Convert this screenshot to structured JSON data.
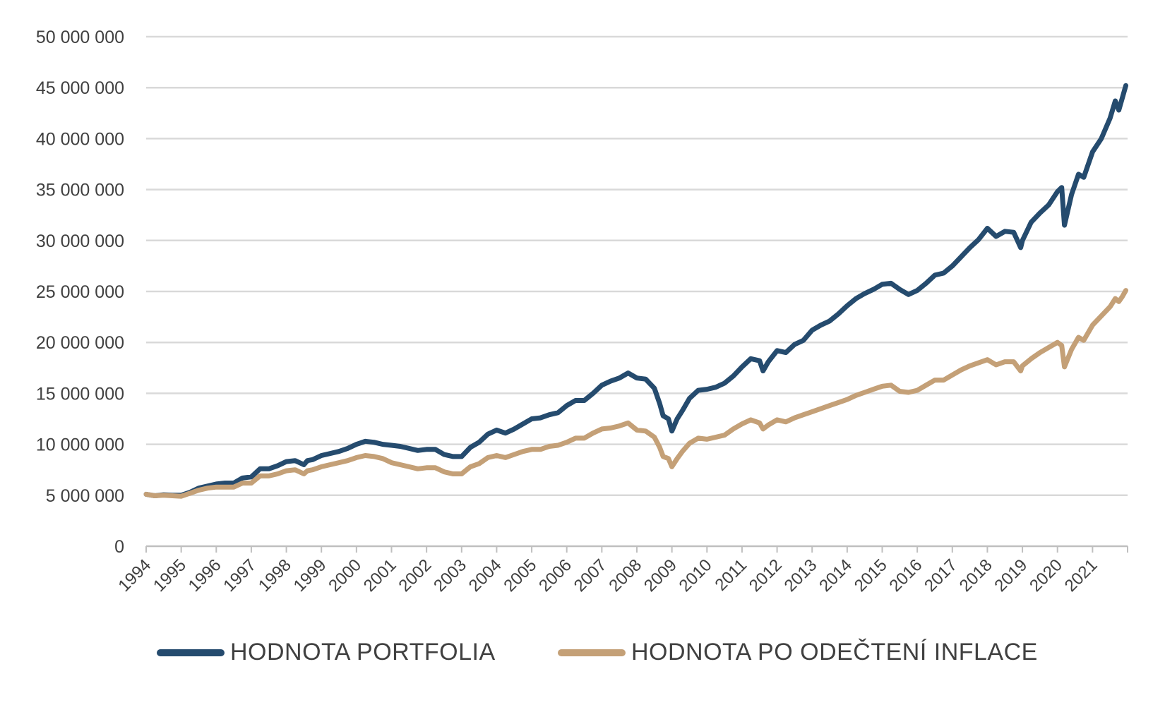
{
  "chart_data": {
    "type": "line",
    "title": "",
    "xlabel": "",
    "ylabel": "",
    "ylim": [
      0,
      50000000
    ],
    "xlim": [
      1994,
      2022
    ],
    "grid": "horizontal",
    "legend_position": "bottom",
    "y_ticks": [
      "0",
      "5 000 000",
      "10 000 000",
      "15 000 000",
      "20 000 000",
      "25 000 000",
      "30 000 000",
      "35 000 000",
      "40 000 000",
      "45 000 000",
      "50 000 000"
    ],
    "y_tick_values": [
      0,
      5000000,
      10000000,
      15000000,
      20000000,
      25000000,
      30000000,
      35000000,
      40000000,
      45000000,
      50000000
    ],
    "x_ticks": [
      "1994",
      "1995",
      "1996",
      "1997",
      "1998",
      "1999",
      "2000",
      "2001",
      "2002",
      "2003",
      "2004",
      "2005",
      "2006",
      "2007",
      "2008",
      "2009",
      "2010",
      "2011",
      "2012",
      "2013",
      "2014",
      "2015",
      "2016",
      "2017",
      "2018",
      "2019",
      "2020",
      "2021"
    ],
    "series": [
      {
        "name": "HODNOTA PORTFOLIA",
        "color": "#254B6E",
        "x": [
          1994.0,
          1994.25,
          1994.5,
          1994.75,
          1995.0,
          1995.25,
          1995.5,
          1995.75,
          1996.0,
          1996.25,
          1996.5,
          1996.75,
          1997.0,
          1997.25,
          1997.5,
          1997.75,
          1998.0,
          1998.25,
          1998.5,
          1998.6,
          1998.75,
          1999.0,
          1999.25,
          1999.5,
          1999.75,
          2000.0,
          2000.25,
          2000.5,
          2000.75,
          2001.0,
          2001.25,
          2001.5,
          2001.75,
          2002.0,
          2002.25,
          2002.5,
          2002.75,
          2003.0,
          2003.25,
          2003.5,
          2003.75,
          2004.0,
          2004.25,
          2004.5,
          2004.75,
          2005.0,
          2005.25,
          2005.5,
          2005.75,
          2006.0,
          2006.25,
          2006.5,
          2006.75,
          2007.0,
          2007.25,
          2007.5,
          2007.75,
          2008.0,
          2008.25,
          2008.5,
          2008.65,
          2008.75,
          2008.9,
          2009.0,
          2009.15,
          2009.3,
          2009.5,
          2009.75,
          2010.0,
          2010.25,
          2010.5,
          2010.75,
          2011.0,
          2011.25,
          2011.5,
          2011.6,
          2011.75,
          2012.0,
          2012.25,
          2012.5,
          2012.75,
          2013.0,
          2013.25,
          2013.5,
          2013.75,
          2014.0,
          2014.25,
          2014.5,
          2014.75,
          2015.0,
          2015.25,
          2015.5,
          2015.75,
          2016.0,
          2016.25,
          2016.5,
          2016.75,
          2017.0,
          2017.25,
          2017.5,
          2017.75,
          2018.0,
          2018.25,
          2018.5,
          2018.75,
          2018.95,
          2019.0,
          2019.25,
          2019.5,
          2019.75,
          2020.0,
          2020.12,
          2020.2,
          2020.4,
          2020.6,
          2020.75,
          2021.0,
          2021.25,
          2021.5,
          2021.65,
          2021.75,
          2021.85,
          2021.95
        ],
        "values": [
          5100000,
          4950000,
          5050000,
          5000000,
          5000000,
          5300000,
          5700000,
          5900000,
          6100000,
          6200000,
          6200000,
          6700000,
          6800000,
          7600000,
          7600000,
          7900000,
          8300000,
          8400000,
          8000000,
          8400000,
          8500000,
          8900000,
          9100000,
          9300000,
          9600000,
          10000000,
          10300000,
          10200000,
          10000000,
          9900000,
          9800000,
          9600000,
          9400000,
          9500000,
          9500000,
          9000000,
          8800000,
          8800000,
          9700000,
          10200000,
          11000000,
          11400000,
          11100000,
          11500000,
          12000000,
          12500000,
          12600000,
          12900000,
          13100000,
          13800000,
          14300000,
          14300000,
          15000000,
          15800000,
          16200000,
          16500000,
          17000000,
          16500000,
          16400000,
          15500000,
          14000000,
          12800000,
          12500000,
          11300000,
          12500000,
          13300000,
          14500000,
          15300000,
          15400000,
          15600000,
          16000000,
          16700000,
          17600000,
          18400000,
          18200000,
          17200000,
          18100000,
          19200000,
          19000000,
          19800000,
          20200000,
          21200000,
          21700000,
          22100000,
          22800000,
          23600000,
          24300000,
          24800000,
          25200000,
          25700000,
          25800000,
          25200000,
          24700000,
          25100000,
          25800000,
          26600000,
          26800000,
          27500000,
          28400000,
          29300000,
          30100000,
          31200000,
          30400000,
          30900000,
          30800000,
          29300000,
          30000000,
          31800000,
          32700000,
          33500000,
          34800000,
          35200000,
          31500000,
          34500000,
          36500000,
          36200000,
          38700000,
          40000000,
          42000000,
          43700000,
          42800000,
          44000000,
          45200000
        ]
      },
      {
        "name": "HODNOTA PO ODEČTENÍ INFLACE",
        "color": "#C4A077",
        "x": [
          1994.0,
          1994.25,
          1994.5,
          1994.75,
          1995.0,
          1995.25,
          1995.5,
          1995.75,
          1996.0,
          1996.25,
          1996.5,
          1996.75,
          1997.0,
          1997.25,
          1997.5,
          1997.75,
          1998.0,
          1998.25,
          1998.5,
          1998.6,
          1998.75,
          1999.0,
          1999.25,
          1999.5,
          1999.75,
          2000.0,
          2000.25,
          2000.5,
          2000.75,
          2001.0,
          2001.25,
          2001.5,
          2001.75,
          2002.0,
          2002.25,
          2002.5,
          2002.75,
          2003.0,
          2003.25,
          2003.5,
          2003.75,
          2004.0,
          2004.25,
          2004.5,
          2004.75,
          2005.0,
          2005.25,
          2005.5,
          2005.75,
          2006.0,
          2006.25,
          2006.5,
          2006.75,
          2007.0,
          2007.25,
          2007.5,
          2007.75,
          2008.0,
          2008.25,
          2008.5,
          2008.65,
          2008.75,
          2008.9,
          2009.0,
          2009.15,
          2009.3,
          2009.5,
          2009.75,
          2010.0,
          2010.25,
          2010.5,
          2010.75,
          2011.0,
          2011.25,
          2011.5,
          2011.6,
          2011.75,
          2012.0,
          2012.25,
          2012.5,
          2012.75,
          2013.0,
          2013.25,
          2013.5,
          2013.75,
          2014.0,
          2014.25,
          2014.5,
          2014.75,
          2015.0,
          2015.25,
          2015.5,
          2015.75,
          2016.0,
          2016.25,
          2016.5,
          2016.75,
          2017.0,
          2017.25,
          2017.5,
          2017.75,
          2018.0,
          2018.25,
          2018.5,
          2018.75,
          2018.95,
          2019.0,
          2019.25,
          2019.5,
          2019.75,
          2020.0,
          2020.12,
          2020.2,
          2020.4,
          2020.6,
          2020.75,
          2021.0,
          2021.25,
          2021.5,
          2021.65,
          2021.75,
          2021.85,
          2021.95
        ],
        "values": [
          5100000,
          4950000,
          5000000,
          4950000,
          4900000,
          5200000,
          5500000,
          5700000,
          5800000,
          5800000,
          5800000,
          6200000,
          6200000,
          6900000,
          6900000,
          7100000,
          7400000,
          7500000,
          7100000,
          7400000,
          7500000,
          7800000,
          8000000,
          8200000,
          8400000,
          8700000,
          8900000,
          8800000,
          8600000,
          8200000,
          8000000,
          7800000,
          7600000,
          7700000,
          7700000,
          7300000,
          7100000,
          7100000,
          7800000,
          8100000,
          8700000,
          8900000,
          8700000,
          9000000,
          9300000,
          9500000,
          9500000,
          9800000,
          9900000,
          10200000,
          10600000,
          10600000,
          11100000,
          11500000,
          11600000,
          11800000,
          12100000,
          11400000,
          11300000,
          10700000,
          9700000,
          8800000,
          8600000,
          7800000,
          8600000,
          9300000,
          10100000,
          10600000,
          10500000,
          10700000,
          10900000,
          11500000,
          12000000,
          12400000,
          12100000,
          11500000,
          11900000,
          12400000,
          12200000,
          12600000,
          12900000,
          13200000,
          13500000,
          13800000,
          14100000,
          14400000,
          14800000,
          15100000,
          15400000,
          15700000,
          15800000,
          15200000,
          15100000,
          15300000,
          15800000,
          16300000,
          16300000,
          16800000,
          17300000,
          17700000,
          18000000,
          18300000,
          17800000,
          18100000,
          18100000,
          17200000,
          17700000,
          18400000,
          19000000,
          19500000,
          20000000,
          19700000,
          17600000,
          19300000,
          20500000,
          20200000,
          21700000,
          22600000,
          23500000,
          24300000,
          24000000,
          24500000,
          25100000
        ]
      }
    ]
  }
}
